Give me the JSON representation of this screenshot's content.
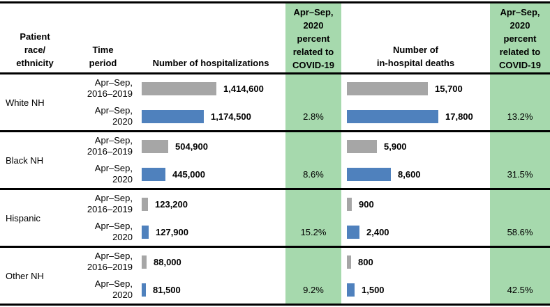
{
  "headers": {
    "race": "Patient\nrace/\nethnicity",
    "period": "Time\nperiod",
    "hospitalizations": "Number of hospitalizations",
    "covid_pct_hosp": "Apr–Sep,\n2020\npercent\nrelated to\nCOVID-19",
    "deaths": "Number of\nin-hospital deaths",
    "covid_pct_deaths": "Apr–Sep,\n2020\npercent\nrelated to\nCOVID-19"
  },
  "groups": [
    {
      "race": "White NH",
      "rows": [
        {
          "period": "Apr–Sep,\n2016–2019",
          "hosp_value": 1414600,
          "hosp_label": "1,414,600",
          "deaths_value": 15700,
          "deaths_label": "15,700"
        },
        {
          "period": "Apr–Sep,\n2020",
          "hosp_value": 1174500,
          "hosp_label": "1,174,500",
          "deaths_value": 17800,
          "deaths_label": "17,800"
        }
      ],
      "hosp_covid_pct": "2.8%",
      "deaths_covid_pct": "13.2%"
    },
    {
      "race": "Black NH",
      "rows": [
        {
          "period": "Apr–Sep,\n2016–2019",
          "hosp_value": 504900,
          "hosp_label": "504,900",
          "deaths_value": 5900,
          "deaths_label": "5,900"
        },
        {
          "period": "Apr–Sep,\n2020",
          "hosp_value": 445000,
          "hosp_label": "445,000",
          "deaths_value": 8600,
          "deaths_label": "8,600"
        }
      ],
      "hosp_covid_pct": "8.6%",
      "deaths_covid_pct": "31.5%"
    },
    {
      "race": "Hispanic",
      "rows": [
        {
          "period": "Apr–Sep,\n2016–2019",
          "hosp_value": 123200,
          "hosp_label": "123,200",
          "deaths_value": 900,
          "deaths_label": "900"
        },
        {
          "period": "Apr–Sep,\n2020",
          "hosp_value": 127900,
          "hosp_label": "127,900",
          "deaths_value": 2400,
          "deaths_label": "2,400"
        }
      ],
      "hosp_covid_pct": "15.2%",
      "deaths_covid_pct": "58.6%"
    },
    {
      "race": "Other NH",
      "rows": [
        {
          "period": "Apr–Sep,\n2016–2019",
          "hosp_value": 88000,
          "hosp_label": "88,000",
          "deaths_value": 800,
          "deaths_label": "800"
        },
        {
          "period": "Apr–Sep,\n2020",
          "hosp_value": 81500,
          "hosp_label": "81,500",
          "deaths_value": 1500,
          "deaths_label": "1,500"
        }
      ],
      "hosp_covid_pct": "9.2%",
      "deaths_covid_pct": "42.5%"
    }
  ],
  "colors": {
    "baseline_bar": "#a6a6a6",
    "covid2020_bar": "#4f81bd",
    "percent_col_bg": "#a6d9ad",
    "border": "#000000"
  },
  "chart_data": {
    "type": "bar",
    "orientation": "horizontal",
    "categories": [
      "White NH",
      "Black NH",
      "Hispanic",
      "Other NH"
    ],
    "time_periods": [
      "Apr–Sep, 2016–2019",
      "Apr–Sep, 2020"
    ],
    "series": [
      {
        "name": "Number of hospitalizations, Apr–Sep 2016–2019",
        "color": "#a6a6a6",
        "values": [
          1414600,
          504900,
          123200,
          88000
        ]
      },
      {
        "name": "Number of hospitalizations, Apr–Sep 2020",
        "color": "#4f81bd",
        "values": [
          1174500,
          445000,
          127900,
          81500
        ]
      },
      {
        "name": "Apr–Sep 2020 percent of hospitalizations related to COVID-19",
        "values": [
          2.8,
          8.6,
          15.2,
          9.2
        ]
      },
      {
        "name": "Number of in-hospital deaths, Apr–Sep 2016–2019",
        "color": "#a6a6a6",
        "values": [
          15700,
          5900,
          900,
          800
        ]
      },
      {
        "name": "Number of in-hospital deaths, Apr–Sep 2020",
        "color": "#4f81bd",
        "values": [
          17800,
          8600,
          2400,
          1500
        ]
      },
      {
        "name": "Apr–Sep 2020 percent of in-hospital deaths related to COVID-19",
        "values": [
          13.2,
          31.5,
          58.6,
          42.5
        ]
      }
    ],
    "title": "",
    "xlabel": "",
    "ylabel": "",
    "layout": "table with embedded bar charts; value labels at bar ends; percent columns on green background; no axes or gridlines; bars scaled per column (hospitalizations max 1,414,600; deaths max 17,800)"
  }
}
